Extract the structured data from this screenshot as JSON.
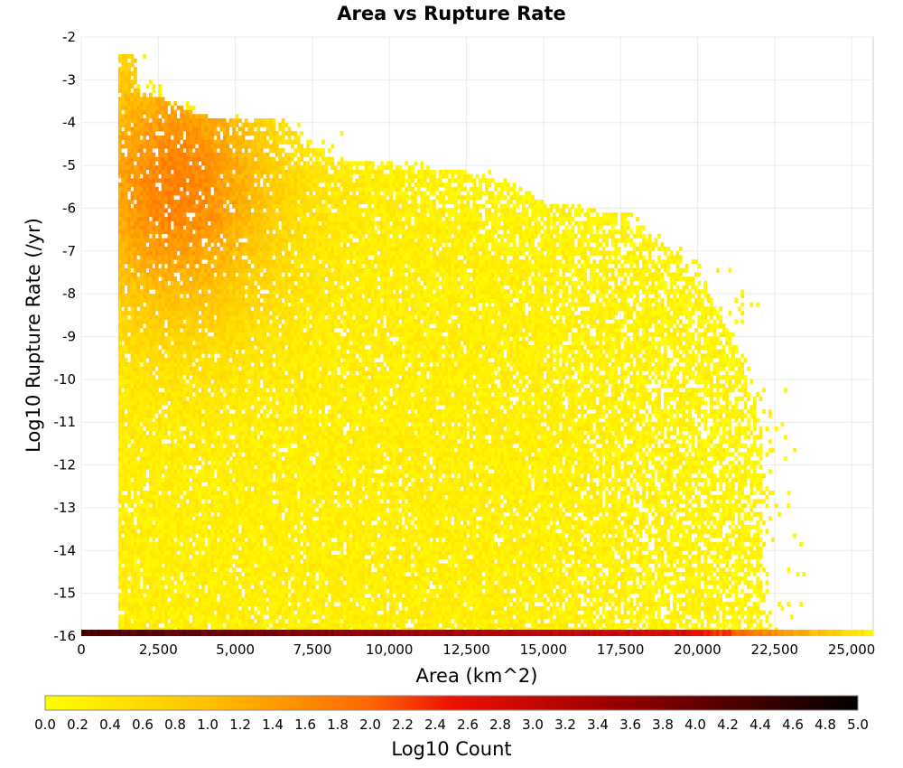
{
  "chart_data": {
    "type": "heatmap",
    "title": "Area vs Rupture Rate",
    "xlabel": "Area (km^2)",
    "ylabel": "Log10 Rupture Rate (/yr)",
    "xlim": [
      0,
      25700
    ],
    "ylim": [
      -16,
      -2
    ],
    "x_ticks": [
      0,
      2500,
      5000,
      7500,
      10000,
      12500,
      15000,
      17500,
      20000,
      22500,
      25000
    ],
    "x_tick_labels": [
      "0",
      "2,500",
      "5,000",
      "7,500",
      "10,000",
      "12,500",
      "15,000",
      "17,500",
      "20,000",
      "22,500",
      "25,000"
    ],
    "y_ticks": [
      -2,
      -3,
      -4,
      -5,
      -6,
      -7,
      -8,
      -9,
      -10,
      -11,
      -12,
      -13,
      -14,
      -15,
      -16
    ],
    "y_tick_labels": [
      "-2",
      "-3",
      "-4",
      "-5",
      "-6",
      "-7",
      "-8",
      "-9",
      "-10",
      "-11",
      "-12",
      "-13",
      "-14",
      "-15",
      "-16"
    ],
    "grid": true,
    "bin_width_x": 100,
    "bin_width_y": 0.1,
    "data_region": {
      "x_min": 1200,
      "y_max_at_start": -2.5,
      "x_edge_at_rate": [
        [
          1200,
          -3.3
        ],
        [
          2000,
          -3.3
        ],
        [
          4000,
          -3.9
        ],
        [
          6500,
          -4.0
        ],
        [
          7500,
          -4.7
        ],
        [
          8500,
          -5.0
        ],
        [
          10000,
          -5.0
        ],
        [
          12500,
          -5.2
        ],
        [
          14000,
          -5.5
        ],
        [
          15000,
          -5.9
        ],
        [
          17500,
          -6.2
        ],
        [
          19000,
          -7.0
        ],
        [
          20000,
          -7.6
        ],
        [
          21000,
          -9.0
        ],
        [
          21500,
          -10.0
        ],
        [
          22000,
          -11.0
        ],
        [
          22000,
          -16.0
        ]
      ]
    },
    "hot_spot": {
      "x": 3000,
      "y": -5.5,
      "log10_count": 1.8
    },
    "bottom_band": {
      "y": -16,
      "x_range": [
        0,
        25700
      ],
      "peak_log10_count": 4.3
    },
    "colorbar": {
      "label": "Log10 Count",
      "min": 0.0,
      "max": 5.0,
      "ticks": [
        "0.0",
        "0.2",
        "0.4",
        "0.6",
        "0.8",
        "1.0",
        "1.2",
        "1.4",
        "1.6",
        "1.8",
        "2.0",
        "2.2",
        "2.4",
        "2.6",
        "2.8",
        "3.0",
        "3.2",
        "3.4",
        "3.6",
        "3.8",
        "4.0",
        "4.2",
        "4.4",
        "4.6",
        "4.8",
        "5.0"
      ],
      "colors": [
        "#ffff00",
        "#ffa000",
        "#ff6000",
        "#e00000",
        "#800000",
        "#000000"
      ]
    }
  }
}
